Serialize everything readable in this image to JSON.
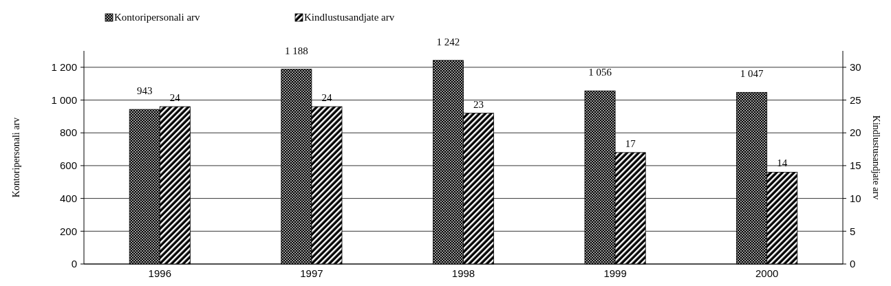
{
  "chart_data": {
    "type": "bar",
    "categories": [
      "1996",
      "1997",
      "1998",
      "1999",
      "2000"
    ],
    "series": [
      {
        "name": "Kontoripersonali arv",
        "color": "#000000",
        "values": [
          943,
          1188,
          1242,
          1056,
          1047
        ],
        "value_labels": [
          "943",
          "1 188",
          "1 242",
          "1 056",
          "1 047"
        ]
      },
      {
        "name": "Kindlustusandjate arv",
        "color": "#000000",
        "axis": "y2",
        "values": [
          24,
          24,
          23,
          17,
          14
        ],
        "value_labels": [
          "24",
          "24",
          "23",
          "17",
          "14"
        ]
      }
    ],
    "ylabel": "Kontoripersonali arv",
    "y2label": "Kindlustusandjate arv",
    "ylim": [
      0,
      1300
    ],
    "yticks": [
      0,
      200,
      400,
      600,
      800,
      {
        "value": 1000,
        "label": "1 000"
      },
      {
        "value": 1200,
        "label": "1 200"
      }
    ],
    "y2lim": [
      0,
      32.5
    ],
    "y2ticks": [
      0,
      5,
      10,
      15,
      20,
      25,
      30
    ],
    "grid": "y",
    "legend": "top left"
  }
}
